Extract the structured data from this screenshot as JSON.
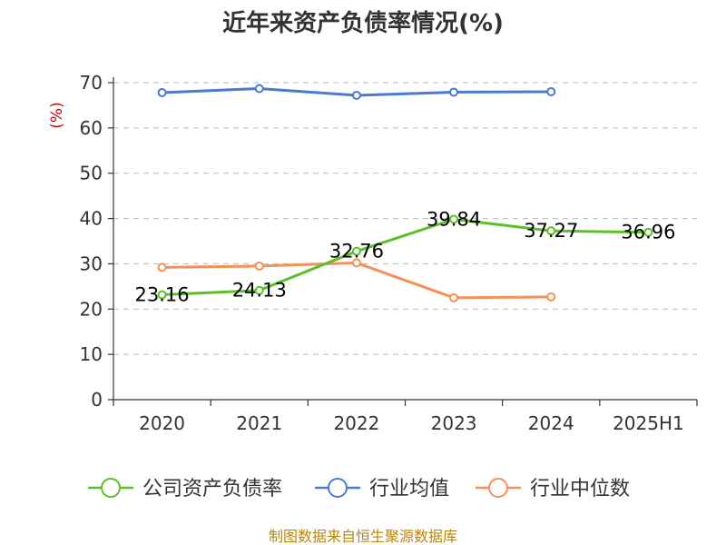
{
  "chart_data": {
    "type": "line",
    "title": "近年来资产负债率情况(%)",
    "ylabel": "(%)",
    "categories": [
      "2020",
      "2021",
      "2022",
      "2023",
      "2024",
      "2025H1"
    ],
    "ylim": [
      0,
      70
    ],
    "yticks": [
      0,
      10,
      20,
      30,
      40,
      50,
      60,
      70
    ],
    "grid": true,
    "legend_position": "bottom",
    "series": [
      {
        "name": "公司资产负债率",
        "color": "#5cc02a",
        "values": [
          23.16,
          24.13,
          32.76,
          39.84,
          37.27,
          36.96
        ],
        "labels": [
          "23.16",
          "24.13",
          "32.76",
          "39.84",
          "37.27",
          "36.96"
        ]
      },
      {
        "name": "行业均值",
        "color": "#4a7bd0",
        "values": [
          67.8,
          68.7,
          67.2,
          67.9,
          68.0,
          null
        ],
        "labels": []
      },
      {
        "name": "行业中位数",
        "color": "#f59058",
        "values": [
          29.2,
          29.5,
          30.2,
          22.5,
          22.7,
          null
        ],
        "labels": []
      }
    ]
  },
  "source": "制图数据来自恒生聚源数据库"
}
